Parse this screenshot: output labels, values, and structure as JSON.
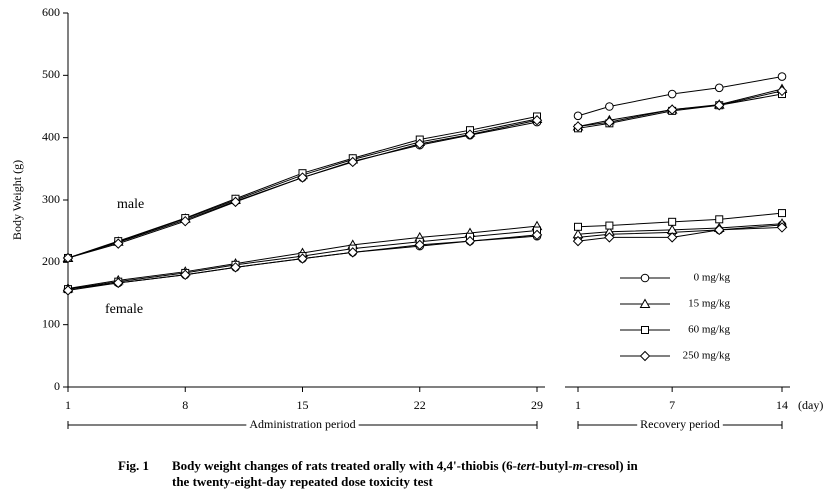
{
  "chart_data": {
    "type": "line",
    "ylabel": "Body Weight (g)",
    "ylim": [
      0,
      600
    ],
    "yticks": [
      0,
      100,
      200,
      300,
      400,
      500,
      600
    ],
    "xunit": "(day)",
    "periods": [
      {
        "label": "Administration period",
        "x": [
          1,
          4,
          8,
          11,
          15,
          18,
          22,
          25,
          29
        ],
        "xlim": [
          1,
          29
        ],
        "xticks": [
          1,
          8,
          15,
          22,
          29
        ]
      },
      {
        "label": "Recovery period",
        "x": [
          1,
          3,
          7,
          10,
          14
        ],
        "xlim": [
          1,
          14
        ],
        "xticks": [
          1,
          7,
          14
        ]
      }
    ],
    "groups": [
      {
        "label": "male"
      },
      {
        "label": "female"
      }
    ],
    "series": [
      {
        "name": "0 mg/kg",
        "marker": "circle",
        "color": "#000000",
        "values": [
          [
            [
              207,
              232,
              268,
              298,
              336,
              362,
              388,
              404,
              425
            ],
            [
              435,
              450,
              470,
              480,
              498
            ]
          ],
          [
            [
              157,
              167,
              180,
              192,
              206,
              216,
              226,
              234,
              242
            ],
            [
              240,
              245,
              248,
              252,
              260
            ]
          ]
        ]
      },
      {
        "name": "15 mg/kg",
        "marker": "triangle",
        "color": "#000000",
        "values": [
          [
            [
              207,
              233,
              270,
              300,
              340,
              365,
              393,
              408,
              430
            ],
            [
              418,
              428,
              445,
              453,
              478
            ]
          ],
          [
            [
              158,
              171,
              185,
              198,
              215,
              228,
              240,
              247,
              258
            ],
            [
              245,
              249,
              252,
              255,
              262
            ]
          ]
        ]
      },
      {
        "name": "60 mg/kg",
        "marker": "square",
        "color": "#000000",
        "values": [
          [
            [
              207,
              234,
              271,
              302,
              343,
              367,
              397,
              412,
              434
            ],
            [
              415,
              423,
              443,
              452,
              470
            ]
          ],
          [
            [
              157,
              169,
              183,
              196,
              210,
              222,
              233,
              241,
              251
            ],
            [
              257,
              259,
              265,
              269,
              279
            ]
          ]
        ]
      },
      {
        "name": "250 mg/kg",
        "marker": "diamond",
        "color": "#000000",
        "values": [
          [
            [
              207,
              230,
              266,
              297,
              336,
              361,
              390,
              405,
              428
            ],
            [
              418,
              425,
              445,
              452,
              475
            ]
          ],
          [
            [
              155,
              167,
              180,
              192,
              206,
              216,
              228,
              234,
              244
            ],
            [
              234,
              240,
              240,
              252,
              256
            ]
          ]
        ]
      }
    ],
    "caption": {
      "label": "Fig. 1",
      "lines": [
        [
          {
            "text": "Body weight changes of rats treated orally with 4,4'-thiobis (6-",
            "italic": false
          },
          {
            "text": "tert",
            "italic": true
          },
          {
            "text": "-butyl-",
            "italic": false
          },
          {
            "text": "m",
            "italic": true
          },
          {
            "text": "-cresol) in",
            "italic": false
          }
        ],
        [
          {
            "text": "the twenty-eight-day repeated dose toxicity test",
            "italic": false
          }
        ]
      ]
    }
  }
}
